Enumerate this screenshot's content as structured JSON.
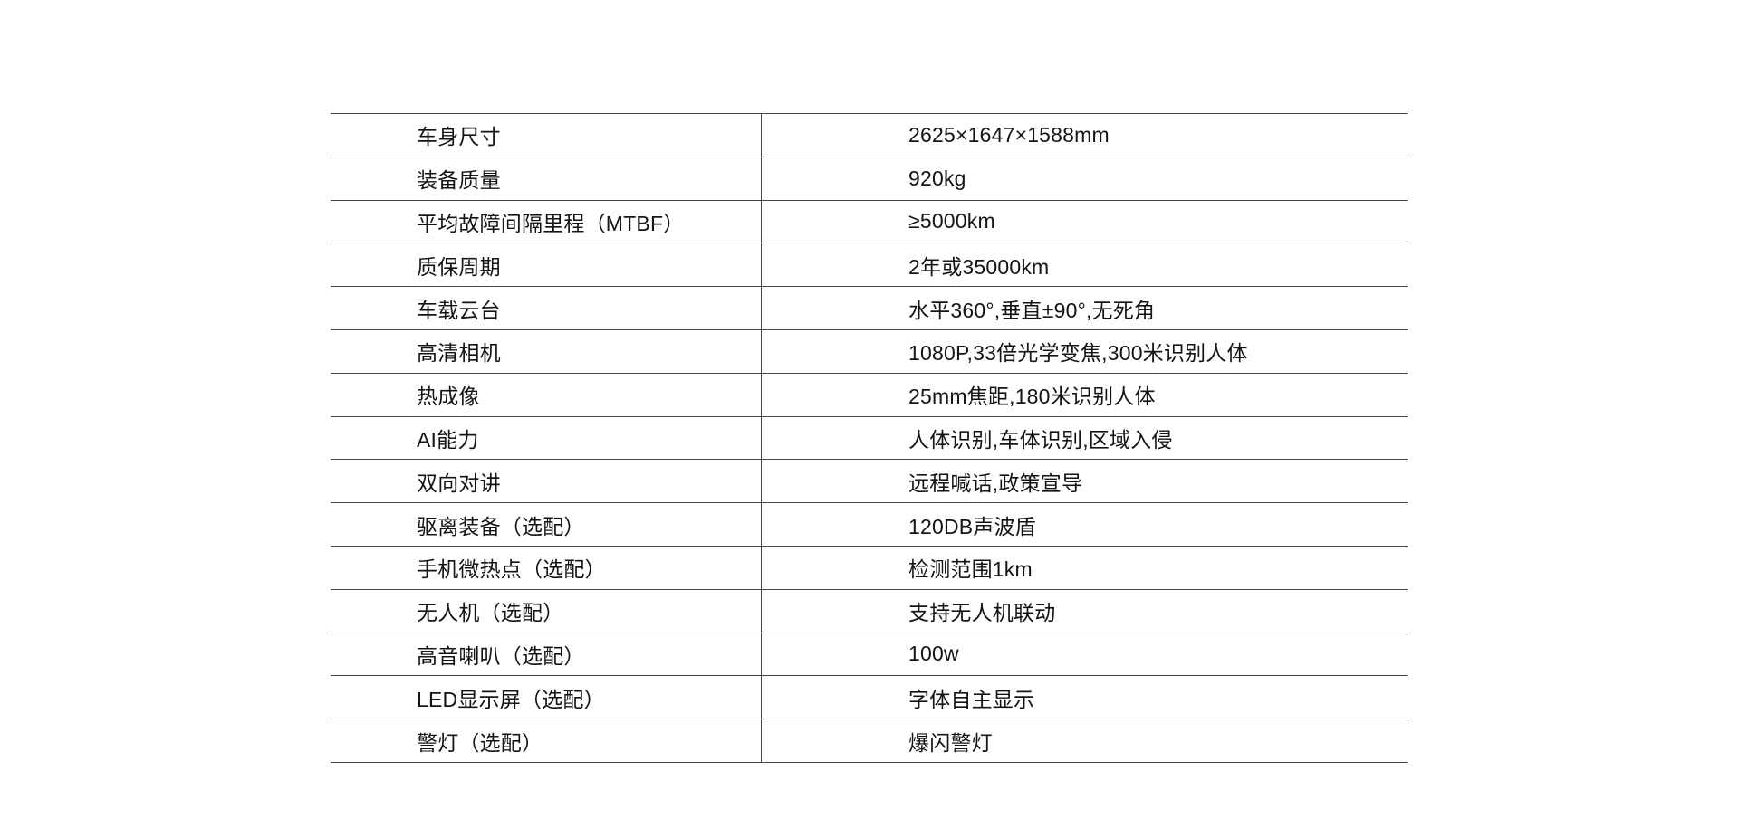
{
  "page": {
    "background": "#ffffff",
    "line_color": "#454545",
    "text_color": "#141414"
  },
  "table": {
    "rows": [
      {
        "label": "车身尺寸",
        "value": "2625×1647×1588mm"
      },
      {
        "label": "装备质量",
        "value": "920kg"
      },
      {
        "label": "平均故障间隔里程（MTBF）",
        "value": "≥5000km"
      },
      {
        "label": "质保周期",
        "value": "2年或35000km"
      },
      {
        "label": "车载云台",
        "value": "水平360°,垂直±90°,无死角"
      },
      {
        "label": "高清相机",
        "value": "1080P,33倍光学变焦,300米识别人体"
      },
      {
        "label": "热成像",
        "value": "25mm焦距,180米识别人体"
      },
      {
        "label": "AI能力",
        "value": "人体识别,车体识别,区域入侵"
      },
      {
        "label": "双向对讲",
        "value": "远程喊话,政策宣导"
      },
      {
        "label": "驱离装备（选配）",
        "value": "120DB声波盾"
      },
      {
        "label": "手机微热点（选配）",
        "value": "检测范围1km"
      },
      {
        "label": "无人机（选配）",
        "value": "支持无人机联动"
      },
      {
        "label": "高音喇叭（选配）",
        "value": "100w"
      },
      {
        "label": "LED显示屏（选配）",
        "value": "字体自主显示"
      },
      {
        "label": "警灯（选配）",
        "value": "爆闪警灯"
      }
    ]
  }
}
